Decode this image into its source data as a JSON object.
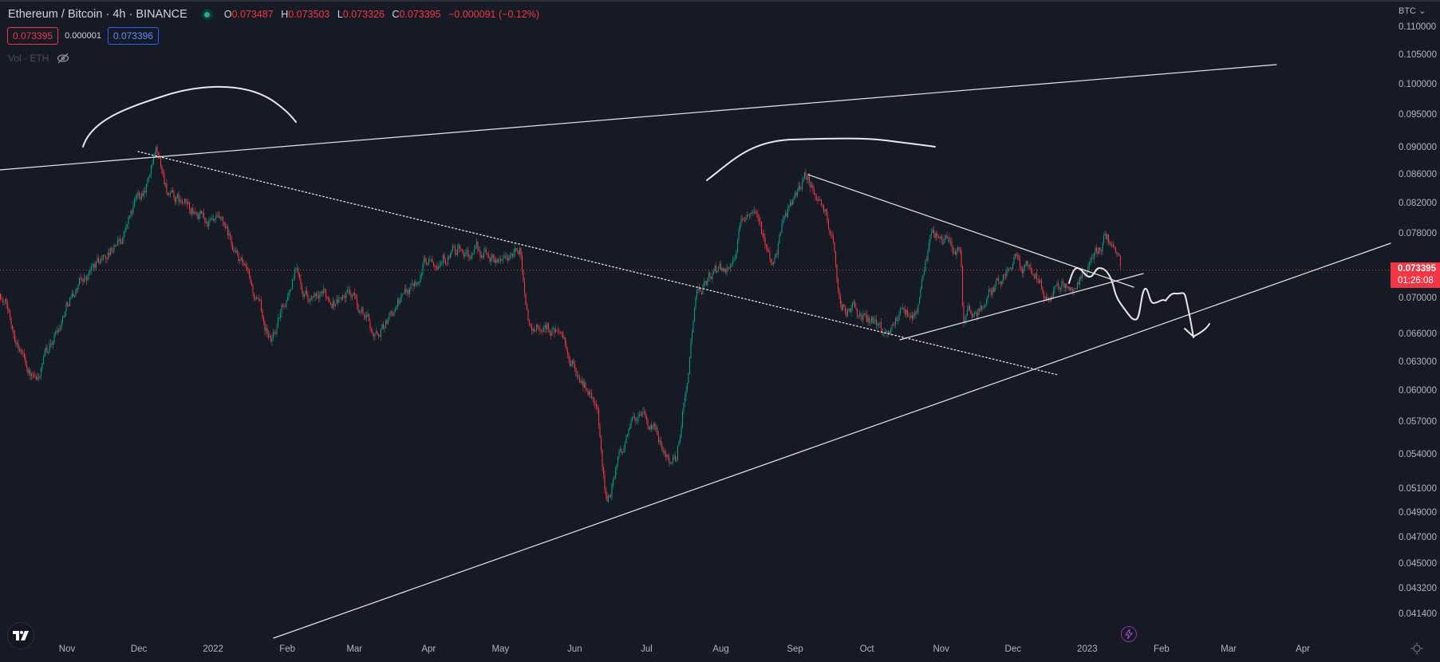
{
  "header": {
    "symbol_title": "Ethereum / Bitcoin · 4h · BINANCE",
    "ohlc": {
      "o_label": "O",
      "o": "0.073487",
      "h_label": "H",
      "h": "0.073503",
      "l_label": "L",
      "l": "0.073326",
      "c_label": "C",
      "c": "0.073395",
      "change": "−0.000091 (−0.12%)"
    },
    "sell_price": "0.073395",
    "spread": "0.000001",
    "buy_price": "0.073396",
    "volume_label": "Vol · ETH",
    "market_status_color": "#22ab94"
  },
  "price_axis": {
    "currency": "BTC",
    "current_price": "0.073395",
    "countdown": "01:26:08"
  },
  "colors": {
    "background": "#161a25",
    "up": "#089981",
    "down": "#f23645",
    "drawings": "#e8e8ec"
  },
  "icons": [
    "tradingview-logo-icon",
    "eye-off-icon",
    "lightning-icon",
    "settings-icon",
    "chevron-down-icon"
  ],
  "chart_data": {
    "type": "candlestick",
    "interval": "4h",
    "y_scale": "log",
    "ylim": [
      0.0405,
      0.1115
    ],
    "grid": false,
    "y_ticks": [
      "0.110000",
      "0.105000",
      "0.100000",
      "0.095000",
      "0.090000",
      "0.086000",
      "0.082000",
      "0.078000",
      "0.070000",
      "0.066000",
      "0.063000",
      "0.060000",
      "0.057000",
      "0.054000",
      "0.051000",
      "0.049000",
      "0.047000",
      "0.045000",
      "0.043200",
      "0.041400"
    ],
    "x_ticks": [
      {
        "label": "Nov",
        "date": "2021-11-01"
      },
      {
        "label": "Dec",
        "date": "2021-12-01"
      },
      {
        "label": "2022",
        "date": "2022-01-01"
      },
      {
        "label": "Feb",
        "date": "2022-02-01"
      },
      {
        "label": "Mar",
        "date": "2022-03-01"
      },
      {
        "label": "Apr",
        "date": "2022-04-01"
      },
      {
        "label": "May",
        "date": "2022-05-01"
      },
      {
        "label": "Jun",
        "date": "2022-06-01"
      },
      {
        "label": "Jul",
        "date": "2022-07-01"
      },
      {
        "label": "Aug",
        "date": "2022-08-01"
      },
      {
        "label": "Sep",
        "date": "2022-09-01"
      },
      {
        "label": "Oct",
        "date": "2022-10-01"
      },
      {
        "label": "Nov",
        "date": "2022-11-01"
      },
      {
        "label": "Dec",
        "date": "2022-12-01"
      },
      {
        "label": "2023",
        "date": "2023-01-01"
      },
      {
        "label": "Feb",
        "date": "2023-02-01"
      },
      {
        "label": "Mar",
        "date": "2023-03-01"
      },
      {
        "label": "Apr",
        "date": "2023-04-01"
      }
    ],
    "price_path": [
      [
        "2021-10-04",
        0.0706
      ],
      [
        "2021-10-19",
        0.0605
      ],
      [
        "2021-11-02",
        0.0706
      ],
      [
        "2021-11-11",
        0.0733
      ],
      [
        "2021-11-23",
        0.0774
      ],
      [
        "2021-12-08",
        0.0885
      ],
      [
        "2021-12-14",
        0.0826
      ],
      [
        "2022-01-04",
        0.0782
      ],
      [
        "2022-01-12",
        0.0741
      ],
      [
        "2022-01-25",
        0.0653
      ],
      [
        "2022-02-04",
        0.0733
      ],
      [
        "2022-02-13",
        0.0695
      ],
      [
        "2022-02-27",
        0.0706
      ],
      [
        "2022-03-10",
        0.0659
      ],
      [
        "2022-03-22",
        0.0706
      ],
      [
        "2022-04-02",
        0.0761
      ],
      [
        "2022-04-22",
        0.0749
      ],
      [
        "2022-05-09",
        0.0756
      ],
      [
        "2022-05-13",
        0.0669
      ],
      [
        "2022-05-24",
        0.0669
      ],
      [
        "2022-05-30",
        0.0625
      ],
      [
        "2022-06-10",
        0.0588
      ],
      [
        "2022-06-14",
        0.05
      ],
      [
        "2022-06-26",
        0.0578
      ],
      [
        "2022-07-13",
        0.0536
      ],
      [
        "2022-07-17",
        0.0605
      ],
      [
        "2022-07-22",
        0.0716
      ],
      [
        "2022-08-03",
        0.0733
      ],
      [
        "2022-08-12",
        0.0816
      ],
      [
        "2022-08-22",
        0.0745
      ],
      [
        "2022-08-30",
        0.0822
      ],
      [
        "2022-09-07",
        0.0855
      ],
      [
        "2022-09-16",
        0.078
      ],
      [
        "2022-09-20",
        0.0695
      ],
      [
        "2022-10-07",
        0.0669
      ],
      [
        "2022-10-22",
        0.0685
      ],
      [
        "2022-10-28",
        0.0785
      ],
      [
        "2022-11-09",
        0.0749
      ],
      [
        "2022-11-10",
        0.0669
      ],
      [
        "2022-11-20",
        0.0695
      ],
      [
        "2022-12-02",
        0.0755
      ],
      [
        "2022-12-15",
        0.0706
      ],
      [
        "2022-12-30",
        0.0733
      ],
      [
        "2023-01-09",
        0.0774
      ],
      [
        "2023-01-15",
        0.0734
      ]
    ],
    "last_price": 0.073395
  }
}
